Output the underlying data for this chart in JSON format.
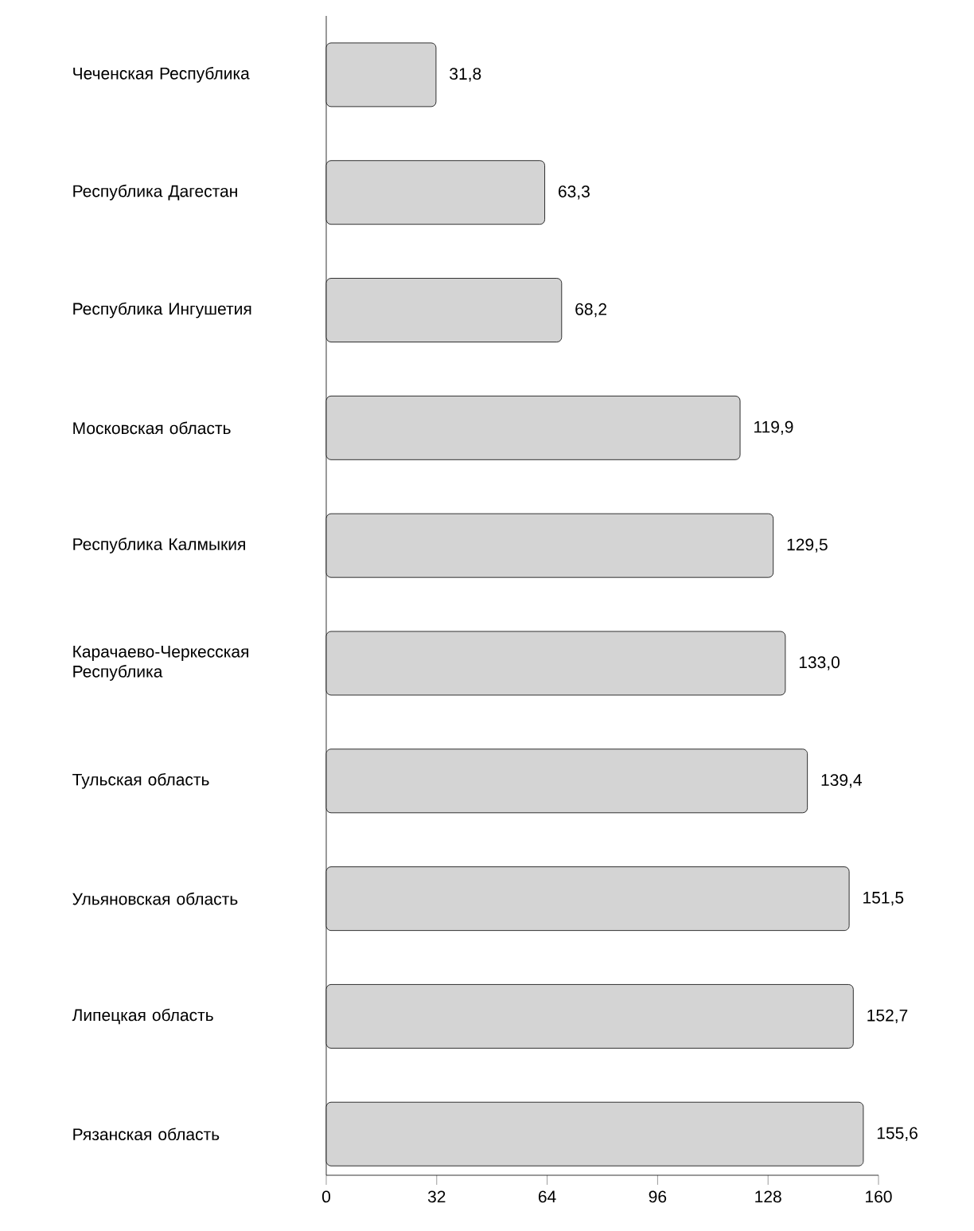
{
  "chart_data": {
    "type": "bar",
    "orientation": "horizontal",
    "categories": [
      "Чеченская Республика",
      "Республика Дагестан",
      "Республика Ингушетия",
      "Московская область",
      "Республика Калмыкия",
      "Карачаево-Черкесская Республика",
      "Тульская область",
      "Ульяновская область",
      "Липецкая область",
      "Рязанская область"
    ],
    "values": [
      31.8,
      63.3,
      68.2,
      119.9,
      129.5,
      133.0,
      139.4,
      151.5,
      152.7,
      155.6
    ],
    "value_labels": [
      "31,8",
      "63,3",
      "68,2",
      "119,9",
      "129,5",
      "133,0",
      "139,4",
      "151,5",
      "152,7",
      "155,6"
    ],
    "color": "#d4d4d4",
    "xlim": [
      0,
      160
    ],
    "xticks": [
      0,
      32,
      64,
      96,
      128,
      160
    ]
  }
}
